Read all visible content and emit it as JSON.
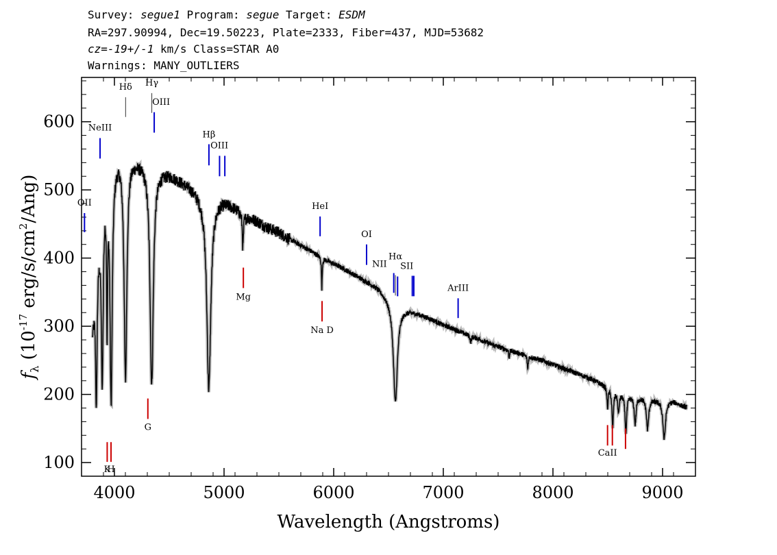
{
  "header": {
    "survey_label": "Survey:",
    "survey": "segue1",
    "program_label": "Program:",
    "program": "segue",
    "target_label": "Target:",
    "target": "ESDM",
    "line2": "RA=297.90994, Dec=19.50223, Plate=2333, Fiber=437, MJD=53682",
    "cz_label": "cz=",
    "cz_value": "-19+/-1",
    "cz_unit": "km/s",
    "class": "Class=STAR A0",
    "warnings": "Warnings: MANY_OUTLIERS"
  },
  "chart_data": {
    "type": "line",
    "title": "",
    "xlabel": "Wavelength (Angstroms)",
    "ylabel": "f_λ (10^-17 erg/s/cm^2/Ang)",
    "xlim": [
      3700,
      9300
    ],
    "ylim": [
      80,
      665
    ],
    "xticks": [
      4000,
      5000,
      6000,
      7000,
      8000,
      9000
    ],
    "yticks": [
      100,
      200,
      300,
      400,
      500,
      600
    ],
    "grid": false,
    "series": [
      {
        "color": "#000000",
        "continuum": [
          [
            3800,
            300
          ],
          [
            3840,
            400
          ],
          [
            3900,
            500
          ],
          [
            3950,
            530
          ],
          [
            4000,
            545
          ],
          [
            4050,
            555
          ],
          [
            4100,
            555
          ],
          [
            4200,
            545
          ],
          [
            4300,
            540
          ],
          [
            4400,
            530
          ],
          [
            4500,
            525
          ],
          [
            4600,
            515
          ],
          [
            4700,
            505
          ],
          [
            4800,
            492
          ],
          [
            4900,
            487
          ],
          [
            5000,
            485
          ],
          [
            5100,
            475
          ],
          [
            5200,
            462
          ],
          [
            5300,
            455
          ],
          [
            5400,
            445
          ],
          [
            5500,
            438
          ],
          [
            5600,
            428
          ],
          [
            5700,
            419
          ],
          [
            5800,
            410
          ],
          [
            5900,
            400
          ],
          [
            6000,
            392
          ],
          [
            6100,
            384
          ],
          [
            6200,
            375
          ],
          [
            6300,
            366
          ],
          [
            6400,
            357
          ],
          [
            6500,
            342
          ],
          [
            6600,
            328
          ],
          [
            6700,
            323
          ],
          [
            6800,
            317
          ],
          [
            6900,
            310
          ],
          [
            7000,
            302
          ],
          [
            7100,
            296
          ],
          [
            7200,
            289
          ],
          [
            7300,
            283
          ],
          [
            7400,
            276
          ],
          [
            7500,
            270
          ],
          [
            7600,
            265
          ],
          [
            7700,
            260
          ],
          [
            7800,
            255
          ],
          [
            7900,
            250
          ],
          [
            8000,
            244
          ],
          [
            8100,
            238
          ],
          [
            8200,
            232
          ],
          [
            8300,
            226
          ],
          [
            8400,
            219
          ],
          [
            8500,
            211
          ],
          [
            8600,
            203
          ],
          [
            8700,
            198
          ],
          [
            8800,
            196
          ],
          [
            8900,
            193
          ],
          [
            9000,
            190
          ],
          [
            9100,
            190
          ],
          [
            9200,
            182
          ]
        ],
        "absorption_lines": [
          {
            "wavelength": 3835,
            "depth": 200,
            "width": 8
          },
          {
            "wavelength": 3889,
            "depth": 260,
            "width": 10
          },
          {
            "wavelength": 3933,
            "depth": 200,
            "width": 5
          },
          {
            "wavelength": 3970,
            "depth": 340,
            "width": 12
          },
          {
            "wavelength": 4101,
            "depth": 330,
            "width": 15
          },
          {
            "wavelength": 4340,
            "depth": 320,
            "width": 18
          },
          {
            "wavelength": 4861,
            "depth": 280,
            "width": 22
          },
          {
            "wavelength": 5172,
            "depth": 50,
            "width": 6
          },
          {
            "wavelength": 5892,
            "depth": 45,
            "width": 4
          },
          {
            "wavelength": 6563,
            "depth": 145,
            "width": 22
          },
          {
            "wavelength": 7250,
            "depth": 10,
            "width": 6
          },
          {
            "wavelength": 7600,
            "depth": 12,
            "width": 4
          },
          {
            "wavelength": 7770,
            "depth": 20,
            "width": 5
          },
          {
            "wavelength": 8498,
            "depth": 30,
            "width": 6
          },
          {
            "wavelength": 8545,
            "depth": 55,
            "width": 8
          },
          {
            "wavelength": 8598,
            "depth": 30,
            "width": 8
          },
          {
            "wavelength": 8665,
            "depth": 55,
            "width": 9
          },
          {
            "wavelength": 8750,
            "depth": 40,
            "width": 10
          },
          {
            "wavelength": 8863,
            "depth": 45,
            "width": 12
          },
          {
            "wavelength": 9015,
            "depth": 55,
            "width": 14
          }
        ],
        "noise_amplitude": 8
      }
    ],
    "annotations": [
      {
        "label": "NeIII",
        "x": 3869,
        "color": "#0000cc",
        "y_bottom": 546,
        "y_top": 576,
        "label_pos": "top",
        "label_y": 587
      },
      {
        "label": "OII",
        "x": 3727,
        "color": "#0000cc",
        "y_bottom": 438,
        "y_top": 466,
        "label_pos": "top",
        "label_y": 477
      },
      {
        "label": "Hδ",
        "x": 4102,
        "color": "#333333",
        "y_bottom": 607,
        "y_top": 636,
        "label_pos": "top",
        "label_y": 647
      },
      {
        "label": "Hγ",
        "x": 4341,
        "color": "#333333",
        "y_bottom": 613,
        "y_top": 642,
        "label_pos": "top",
        "label_y": 653
      },
      {
        "label": "OIII",
        "x": 4363,
        "color": "#0000cc",
        "y_bottom": 584,
        "y_top": 614,
        "label_pos": "top-right",
        "label_y": 625
      },
      {
        "label": "Hβ",
        "x": 4862,
        "color": "#0000cc",
        "y_bottom": 536,
        "y_top": 567,
        "label_pos": "top",
        "label_y": 577
      },
      {
        "label": "OIII",
        "x": 4959,
        "color": "#0000cc",
        "y_bottom": 520,
        "y_top": 550,
        "label_pos": "none",
        "label_y": 0
      },
      {
        "label": "OIII",
        "x": 5007,
        "color": "#0000cc",
        "y_bottom": 520,
        "y_top": 550,
        "label_pos": "top-center",
        "label_y": 561
      },
      {
        "label": "HeI",
        "x": 5876,
        "color": "#0000cc",
        "y_bottom": 432,
        "y_top": 461,
        "label_pos": "top",
        "label_y": 472
      },
      {
        "label": "OI",
        "x": 6300,
        "color": "#0000cc",
        "y_bottom": 390,
        "y_top": 420,
        "label_pos": "top",
        "label_y": 431
      },
      {
        "label": "NII",
        "x": 6548,
        "color": "#0000cc",
        "y_bottom": 349,
        "y_top": 378,
        "label_pos": "left",
        "label_y": 387
      },
      {
        "label": "Hα",
        "x": 6563,
        "color": "#333333",
        "y_bottom": 345,
        "y_top": 375,
        "label_pos": "top",
        "label_y": 398
      },
      {
        "label": "NII",
        "x": 6583,
        "color": "#0000cc",
        "y_bottom": 344,
        "y_top": 373,
        "label_pos": "none",
        "label_y": 0
      },
      {
        "label": "SII",
        "x": 6717,
        "color": "#0000cc",
        "y_bottom": 344,
        "y_top": 374,
        "label_pos": "top-center",
        "label_y": 384
      },
      {
        "label": "SII",
        "x": 6731,
        "color": "#0000cc",
        "y_bottom": 344,
        "y_top": 374,
        "label_pos": "none",
        "label_y": 0
      },
      {
        "label": "ArIII",
        "x": 7135,
        "color": "#0000cc",
        "y_bottom": 312,
        "y_top": 341,
        "label_pos": "top",
        "label_y": 352
      },
      {
        "label": "K",
        "x": 3934,
        "color": "#cc0000",
        "y_bottom": 101,
        "y_top": 130,
        "label_pos": "bottom",
        "label_y": 86
      },
      {
        "label": "H",
        "x": 3969,
        "color": "#cc0000",
        "y_bottom": 101,
        "y_top": 130,
        "label_pos": "bottom",
        "label_y": 86
      },
      {
        "label": "G",
        "x": 4305,
        "color": "#cc0000",
        "y_bottom": 164,
        "y_top": 194,
        "label_pos": "bottom",
        "label_y": 148
      },
      {
        "label": "Mg",
        "x": 5176,
        "color": "#cc0000",
        "y_bottom": 356,
        "y_top": 386,
        "label_pos": "bottom",
        "label_y": 339
      },
      {
        "label": "Na D",
        "x": 5894,
        "color": "#cc0000",
        "y_bottom": 307,
        "y_top": 337,
        "label_pos": "bottom",
        "label_y": 290
      },
      {
        "label": "CaII",
        "x": 8498,
        "color": "#cc0000",
        "y_bottom": 125,
        "y_top": 155,
        "label_pos": "bottom",
        "label_y": 110
      },
      {
        "label": "CaII",
        "x": 8542,
        "color": "#cc0000",
        "y_bottom": 125,
        "y_top": 155,
        "label_pos": "none",
        "label_y": 0
      },
      {
        "label": "CaII",
        "x": 8662,
        "color": "#cc0000",
        "y_bottom": 120,
        "y_top": 150,
        "label_pos": "none",
        "label_y": 0
      }
    ]
  }
}
